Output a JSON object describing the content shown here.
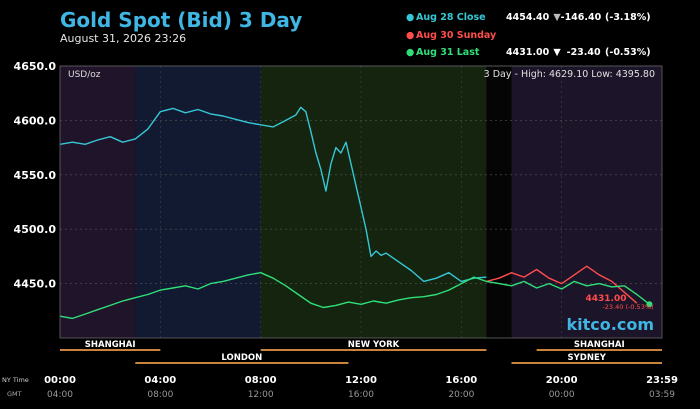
{
  "header": {
    "title": "Gold Spot (Bid) 3 Day",
    "subtitle": "August 31, 2026 23:26"
  },
  "legend": [
    {
      "label": "Aug 28 Close",
      "value": "4454.40",
      "arrow": "▼",
      "change": "-146.40",
      "pct": "(-3.18%)",
      "color": "#36c7d6"
    },
    {
      "label": "Aug 30 Sunday",
      "value": "",
      "arrow": "",
      "change": "",
      "pct": "",
      "color": "#ff4d4d"
    },
    {
      "label": "Aug 31 Last",
      "value": "4431.00",
      "arrow": "▼",
      "change": "-23.40",
      "pct": "(-0.53%)",
      "color": "#2fe07a"
    }
  ],
  "chart_data": {
    "type": "line",
    "unit_label": "USD/oz",
    "stats_label": "3 Day - High: 4629.10  Low: 4395.80",
    "ylim": [
      4400,
      4650
    ],
    "yticks": [
      "4650.0",
      "4600.0",
      "4550.0",
      "4500.0",
      "4450.0"
    ],
    "ytick_values": [
      4650,
      4600,
      4550,
      4500,
      4450
    ],
    "x_range_hours": [
      0,
      24
    ],
    "x_ticks_ny": [
      "00:00",
      "04:00",
      "08:00",
      "12:00",
      "16:00",
      "20:00",
      "23:59"
    ],
    "x_ticks_gmt": [
      "04:00",
      "08:00",
      "12:00",
      "16:00",
      "20:00",
      "00:00",
      "03:59"
    ],
    "x_tick_hours": [
      0,
      4,
      8,
      12,
      16,
      20,
      24
    ],
    "x_axis_labels": {
      "ny": "NY Time",
      "gmt": "GMT"
    },
    "last_label": {
      "price": "4431.00",
      "change": "-23.40 (-0.53%)"
    },
    "watermark": "kitco.com",
    "sessions": [
      {
        "name": "SHANGHAI",
        "start": 0,
        "end": 4
      },
      {
        "name": "LONDON",
        "start": 3,
        "end": 11.5
      },
      {
        "name": "NEW YORK",
        "start": 8,
        "end": 17
      },
      {
        "name": "SHANGHAI",
        "start": 19,
        "end": 24
      },
      {
        "name": "SYDNEY",
        "start": 18,
        "end": 24
      }
    ],
    "series": [
      {
        "name": "Aug 28 Close",
        "color": "#36c7d6",
        "x": [
          0,
          0.5,
          1,
          1.5,
          2,
          2.5,
          3,
          3.5,
          4,
          4.5,
          5,
          5.5,
          6,
          6.5,
          7,
          7.5,
          8,
          8.5,
          9,
          9.4,
          9.6,
          9.8,
          10,
          10.2,
          10.4,
          10.6,
          10.8,
          11,
          11.2,
          11.4,
          11.6,
          11.8,
          12,
          12.2,
          12.4,
          12.6,
          12.8,
          13,
          13.5,
          14,
          14.5,
          15,
          15.5,
          16,
          16.5,
          17
        ],
        "y": [
          4578,
          4580,
          4578,
          4582,
          4585,
          4580,
          4583,
          4592,
          4608,
          4611,
          4607,
          4610,
          4606,
          4604,
          4601,
          4598,
          4596,
          4594,
          4600,
          4605,
          4612,
          4608,
          4590,
          4570,
          4555,
          4535,
          4560,
          4575,
          4570,
          4580,
          4560,
          4540,
          4520,
          4500,
          4475,
          4480,
          4476,
          4478,
          4470,
          4462,
          4452,
          4455,
          4460,
          4452,
          4455,
          4456
        ]
      },
      {
        "name": "Aug 30 Sunday",
        "color": "#ff4d4d",
        "x": [
          17,
          17.5,
          18,
          18.5,
          19,
          19.5,
          20,
          20.5,
          21,
          21.5,
          22,
          22.5,
          23
        ],
        "y": [
          4452,
          4455,
          4460,
          4456,
          4463,
          4455,
          4450,
          4458,
          4466,
          4458,
          4452,
          4442,
          4432
        ]
      },
      {
        "name": "Aug 31 Last",
        "color": "#2fe07a",
        "x": [
          0,
          0.5,
          1,
          1.5,
          2,
          2.5,
          3,
          3.5,
          4,
          4.5,
          5,
          5.5,
          6,
          6.5,
          7,
          7.5,
          8,
          8.5,
          9,
          9.5,
          10,
          10.5,
          11,
          11.5,
          12,
          12.5,
          13,
          13.5,
          14,
          14.5,
          15,
          15.5,
          16,
          16.5,
          17,
          17.5,
          18,
          18.5,
          19,
          19.5,
          20,
          20.5,
          21,
          21.5,
          22,
          22.5,
          23,
          23.5
        ],
        "y": [
          4420,
          4418,
          4422,
          4426,
          4430,
          4434,
          4437,
          4440,
          4444,
          4446,
          4448,
          4445,
          4450,
          4452,
          4455,
          4458,
          4460,
          4455,
          4448,
          4440,
          4432,
          4428,
          4430,
          4433,
          4431,
          4434,
          4432,
          4435,
          4437,
          4438,
          4440,
          4444,
          4450,
          4456,
          4452,
          4450,
          4448,
          4452,
          4446,
          4450,
          4445,
          4452,
          4448,
          4450,
          4447,
          4448,
          4440,
          4431
        ]
      }
    ]
  }
}
